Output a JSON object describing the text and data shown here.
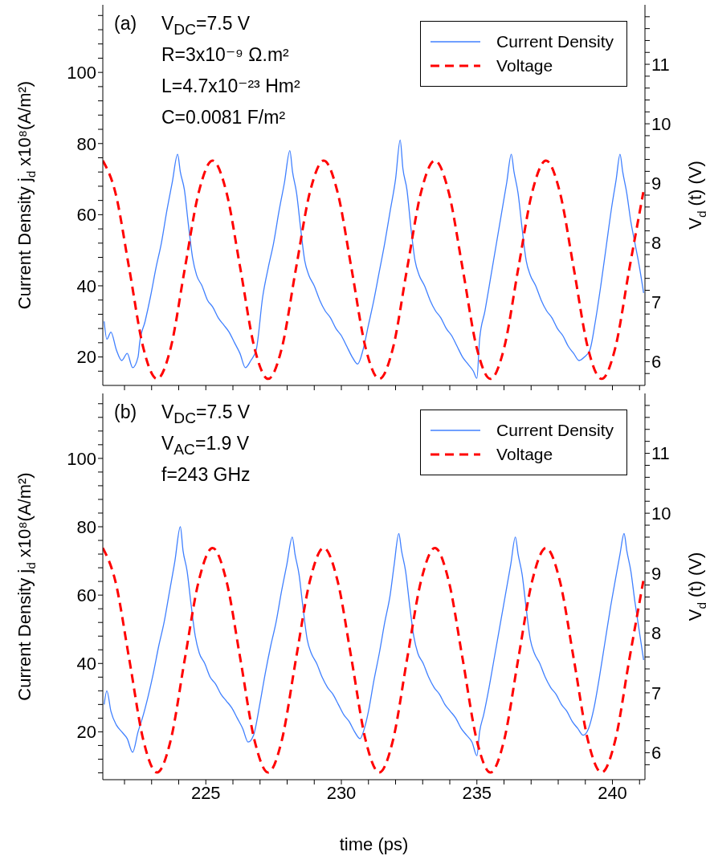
{
  "chart_data": [
    {
      "type": "line",
      "ylabel": "Current Density  j$_{d}$ x10⁸(A/m²)",
      "y2label": "V$_{d}$ (t) (V)",
      "legend": "top right",
      "tick_labels": "y",
      "annotations": [
        "(a)",
        "V$_{DC}$=7.5 V",
        "R=3x10⁻⁹ Ω.m²",
        "L=4.7x10⁻²³ Hm²",
        "C=0.0081 F/m²"
      ],
      "xlim": [
        221.2,
        241.2
      ],
      "ylim": [
        12,
        119
      ],
      "y2lim": [
        5.6,
        12
      ],
      "xticks": [
        {
          "value": 222,
          "label": null
        },
        {
          "value": 223,
          "label": null
        },
        {
          "value": 224,
          "label": null
        },
        225,
        {
          "value": 226,
          "label": null
        },
        {
          "value": 227,
          "label": null
        },
        {
          "value": 228,
          "label": null
        },
        {
          "value": 229,
          "label": null
        },
        230,
        {
          "value": 231,
          "label": null
        },
        {
          "value": 232,
          "label": null
        },
        {
          "value": 233,
          "label": null
        },
        {
          "value": 234,
          "label": null
        },
        235,
        {
          "value": 236,
          "label": null
        },
        {
          "value": 237,
          "label": null
        },
        {
          "value": 238,
          "label": null
        },
        {
          "value": 239,
          "label": null
        },
        240,
        {
          "value": 241,
          "label": null
        }
      ],
      "yticks": [
        {
          "value": 16,
          "label": null
        },
        20,
        {
          "value": 24,
          "label": null
        },
        {
          "value": 28,
          "label": null
        },
        {
          "value": 32,
          "label": null
        },
        {
          "value": 36,
          "label": null
        },
        40,
        {
          "value": 44,
          "label": null
        },
        {
          "value": 48,
          "label": null
        },
        {
          "value": 52,
          "label": null
        },
        {
          "value": 56,
          "label": null
        },
        60,
        {
          "value": 64,
          "label": null
        },
        {
          "value": 68,
          "label": null
        },
        {
          "value": 72,
          "label": null
        },
        {
          "value": 76,
          "label": null
        },
        80,
        {
          "value": 84,
          "label": null
        },
        {
          "value": 88,
          "label": null
        },
        {
          "value": 92,
          "label": null
        },
        {
          "value": 96,
          "label": null
        },
        100,
        {
          "value": 104,
          "label": null
        },
        {
          "value": 108,
          "label": null
        },
        {
          "value": 112,
          "label": null
        },
        {
          "value": 116,
          "label": null
        }
      ],
      "y2ticks": [
        {
          "value": 5.8,
          "label": null
        },
        6,
        {
          "value": 6.2,
          "label": null
        },
        {
          "value": 6.4,
          "label": null
        },
        {
          "value": 6.6,
          "label": null
        },
        {
          "value": 6.8,
          "label": null
        },
        7,
        {
          "value": 7.2,
          "label": null
        },
        {
          "value": 7.4,
          "label": null
        },
        {
          "value": 7.6,
          "label": null
        },
        {
          "value": 7.8,
          "label": null
        },
        8,
        {
          "value": 8.2,
          "label": null
        },
        {
          "value": 8.4,
          "label": null
        },
        {
          "value": 8.6,
          "label": null
        },
        {
          "value": 8.8,
          "label": null
        },
        9,
        {
          "value": 9.2,
          "label": null
        },
        {
          "value": 9.4,
          "label": null
        },
        {
          "value": 9.6,
          "label": null
        },
        {
          "value": 9.8,
          "label": null
        },
        10,
        {
          "value": 10.2,
          "label": null
        },
        {
          "value": 10.4,
          "label": null
        },
        {
          "value": 10.6,
          "label": null
        },
        {
          "value": 10.8,
          "label": null
        },
        11,
        {
          "value": 11.2,
          "label": null
        },
        {
          "value": 11.4,
          "label": null
        },
        {
          "value": 11.6,
          "label": null
        },
        {
          "value": 11.8,
          "label": null
        }
      ],
      "series": [
        {
          "name": "Current Density",
          "color": "#4080ff",
          "line_style": "solid",
          "x": [
            221.25,
            221.35,
            221.5,
            221.7,
            221.9,
            222.1,
            222.3,
            222.5,
            222.56,
            222.76,
            222.96,
            223.16,
            223.36,
            223.56,
            223.76,
            223.96,
            224.06,
            224.21,
            224.36,
            224.51,
            224.66,
            224.86,
            225.06,
            225.26,
            225.46,
            225.66,
            225.86,
            226.06,
            226.26,
            226.46,
            226.66,
            226.86,
            227.1,
            227.3,
            227.5,
            227.7,
            227.9,
            228.1,
            228.2,
            228.35,
            228.5,
            228.65,
            228.8,
            229.0,
            229.2,
            229.4,
            229.6,
            229.8,
            230.0,
            230.2,
            230.4,
            230.6,
            230.8,
            231.0,
            231.2,
            231.4,
            231.6,
            231.8,
            232.0,
            232.17,
            232.27,
            232.42,
            232.57,
            232.72,
            232.87,
            233.07,
            233.27,
            233.47,
            233.67,
            233.87,
            234.07,
            234.27,
            234.47,
            234.67,
            234.87,
            235.0,
            235.1,
            235.3,
            235.5,
            235.7,
            235.9,
            236.1,
            236.27,
            236.37,
            236.52,
            236.67,
            236.82,
            236.97,
            237.17,
            237.37,
            237.57,
            237.77,
            237.97,
            238.17,
            238.37,
            238.57,
            238.77,
            238.97,
            239.17,
            239.37,
            239.57,
            239.77,
            239.97,
            240.14,
            240.28,
            240.38,
            240.53,
            240.68,
            240.83,
            240.98,
            241.15
          ],
          "values": [
            30,
            25,
            27,
            22,
            19,
            21,
            17,
            20,
            24,
            30,
            37,
            45,
            52,
            61,
            69,
            77,
            72,
            67,
            57,
            48,
            43,
            40,
            36,
            34,
            31,
            29,
            27,
            24,
            21,
            17,
            19,
            22,
            37,
            45,
            52,
            61,
            69,
            78,
            72,
            66,
            56,
            47,
            43,
            40,
            36,
            33,
            31,
            28,
            26,
            23,
            20,
            18,
            22,
            29,
            36,
            44,
            52,
            61,
            70,
            81,
            73,
            67,
            56,
            47,
            43,
            40,
            36,
            33,
            31,
            28,
            26,
            23,
            20,
            18,
            16,
            14,
            25,
            33,
            42,
            51,
            60,
            69,
            77,
            72,
            66,
            56,
            47,
            43,
            40,
            36,
            33,
            31,
            28,
            26,
            23,
            21,
            19,
            20,
            22,
            30,
            40,
            51,
            62,
            70,
            77,
            72,
            66,
            58,
            52,
            46,
            38
          ]
        },
        {
          "name": "Voltage",
          "color": "#ff0000",
          "line_style": "dashed",
          "axis": "y2",
          "x": [
            221.2,
            221.66,
            222.18,
            222.69,
            223.2,
            223.71,
            224.22,
            224.74,
            225.25,
            225.76,
            226.28,
            226.79,
            227.3,
            227.81,
            228.32,
            228.84,
            229.35,
            229.86,
            230.38,
            230.89,
            231.4,
            231.91,
            232.42,
            232.94,
            233.45,
            233.96,
            234.48,
            234.99,
            235.5,
            236.01,
            236.52,
            237.04,
            237.55,
            238.06,
            238.58,
            239.09,
            239.6,
            240.11,
            240.62,
            241.14
          ],
          "values": [
            9.38,
            8.85,
            7.55,
            6.24,
            5.71,
            6.24,
            7.55,
            8.85,
            9.38,
            8.85,
            7.55,
            6.24,
            5.71,
            6.24,
            7.55,
            8.85,
            9.38,
            8.85,
            7.55,
            6.24,
            5.71,
            6.24,
            7.55,
            8.85,
            9.38,
            8.85,
            7.55,
            6.24,
            5.71,
            6.24,
            7.55,
            8.85,
            9.38,
            8.85,
            7.55,
            6.24,
            5.71,
            6.24,
            7.55,
            8.85
          ]
        }
      ]
    },
    {
      "type": "line",
      "xlabel": "time (ps)",
      "ylabel": "Current Density  j$_{d}$ x10⁸(A/m²)",
      "y2label": "V$_{d}$ (t) (V)",
      "legend": "top right",
      "annotations": [
        "(b)",
        "V$_{DC}$=7.5 V",
        "V$_{AC}$=1.9 V",
        "f=243 GHz"
      ],
      "xlim": [
        221.2,
        241.2
      ],
      "ylim": [
        6,
        119
      ],
      "y2lim": [
        5.55,
        12
      ],
      "xticks": [
        {
          "value": 222,
          "label": null
        },
        {
          "value": 223,
          "label": null
        },
        {
          "value": 224,
          "label": null
        },
        225,
        {
          "value": 226,
          "label": null
        },
        {
          "value": 227,
          "label": null
        },
        {
          "value": 228,
          "label": null
        },
        {
          "value": 229,
          "label": null
        },
        230,
        {
          "value": 231,
          "label": null
        },
        {
          "value": 232,
          "label": null
        },
        {
          "value": 233,
          "label": null
        },
        {
          "value": 234,
          "label": null
        },
        235,
        {
          "value": 236,
          "label": null
        },
        {
          "value": 237,
          "label": null
        },
        {
          "value": 238,
          "label": null
        },
        {
          "value": 239,
          "label": null
        },
        240,
        {
          "value": 241,
          "label": null
        }
      ],
      "yticks": [
        {
          "value": 8,
          "label": null
        },
        {
          "value": 12,
          "label": null
        },
        {
          "value": 16,
          "label": null
        },
        20,
        {
          "value": 24,
          "label": null
        },
        {
          "value": 28,
          "label": null
        },
        {
          "value": 32,
          "label": null
        },
        {
          "value": 36,
          "label": null
        },
        40,
        {
          "value": 44,
          "label": null
        },
        {
          "value": 48,
          "label": null
        },
        {
          "value": 52,
          "label": null
        },
        {
          "value": 56,
          "label": null
        },
        60,
        {
          "value": 64,
          "label": null
        },
        {
          "value": 68,
          "label": null
        },
        {
          "value": 72,
          "label": null
        },
        {
          "value": 76,
          "label": null
        },
        80,
        {
          "value": 84,
          "label": null
        },
        {
          "value": 88,
          "label": null
        },
        {
          "value": 92,
          "label": null
        },
        {
          "value": 96,
          "label": null
        },
        100,
        {
          "value": 104,
          "label": null
        },
        {
          "value": 108,
          "label": null
        },
        {
          "value": 112,
          "label": null
        },
        {
          "value": 116,
          "label": null
        }
      ],
      "y2ticks": [
        {
          "value": 5.8,
          "label": null
        },
        6,
        {
          "value": 6.2,
          "label": null
        },
        {
          "value": 6.4,
          "label": null
        },
        {
          "value": 6.6,
          "label": null
        },
        {
          "value": 6.8,
          "label": null
        },
        7,
        {
          "value": 7.2,
          "label": null
        },
        {
          "value": 7.4,
          "label": null
        },
        {
          "value": 7.6,
          "label": null
        },
        {
          "value": 7.8,
          "label": null
        },
        8,
        {
          "value": 8.2,
          "label": null
        },
        {
          "value": 8.4,
          "label": null
        },
        {
          "value": 8.6,
          "label": null
        },
        {
          "value": 8.8,
          "label": null
        },
        9,
        {
          "value": 9.2,
          "label": null
        },
        {
          "value": 9.4,
          "label": null
        },
        {
          "value": 9.6,
          "label": null
        },
        {
          "value": 9.8,
          "label": null
        },
        10,
        {
          "value": 10.2,
          "label": null
        },
        {
          "value": 10.4,
          "label": null
        },
        {
          "value": 10.6,
          "label": null
        },
        {
          "value": 10.8,
          "label": null
        },
        11,
        {
          "value": 11.2,
          "label": null
        },
        {
          "value": 11.4,
          "label": null
        },
        {
          "value": 11.6,
          "label": null
        },
        {
          "value": 11.8,
          "label": null
        }
      ],
      "series": [
        {
          "name": "Current Density",
          "color": "#4080ff",
          "line_style": "solid",
          "x": [
            221.25,
            221.35,
            221.5,
            221.7,
            221.9,
            222.1,
            222.3,
            222.5,
            222.66,
            222.86,
            223.06,
            223.26,
            223.46,
            223.66,
            223.86,
            224.06,
            224.16,
            224.31,
            224.46,
            224.61,
            224.76,
            224.96,
            225.16,
            225.36,
            225.56,
            225.76,
            225.96,
            226.16,
            226.36,
            226.56,
            226.76,
            226.99,
            227.19,
            227.39,
            227.59,
            227.79,
            227.99,
            228.19,
            228.29,
            228.44,
            228.59,
            228.74,
            228.89,
            229.09,
            229.29,
            229.49,
            229.69,
            229.89,
            230.09,
            230.29,
            230.49,
            230.69,
            230.85,
            231.0,
            231.2,
            231.4,
            231.6,
            231.8,
            231.95,
            232.12,
            232.22,
            232.37,
            232.52,
            232.67,
            232.82,
            233.02,
            233.22,
            233.42,
            233.62,
            233.82,
            234.02,
            234.22,
            234.42,
            234.62,
            234.82,
            235.0,
            235.1,
            235.25,
            235.45,
            235.65,
            235.85,
            236.05,
            236.25,
            236.42,
            236.52,
            236.67,
            236.82,
            236.97,
            237.12,
            237.32,
            237.52,
            237.72,
            237.92,
            238.12,
            238.32,
            238.52,
            238.72,
            238.92,
            239.12,
            239.32,
            239.52,
            239.72,
            239.92,
            240.12,
            240.28,
            240.43,
            240.53,
            240.68,
            240.83,
            240.98,
            241.15
          ],
          "values": [
            28,
            32,
            26,
            22,
            20,
            18,
            14,
            20,
            24,
            30,
            37,
            45,
            52,
            61,
            70,
            80,
            73,
            67,
            57,
            48,
            43,
            40,
            36,
            34,
            31,
            29,
            27,
            24,
            21,
            17,
            19,
            28,
            37,
            45,
            52,
            61,
            69,
            77,
            72,
            66,
            56,
            47,
            43,
            40,
            36,
            33,
            31,
            28,
            25,
            23,
            20,
            18,
            21,
            26,
            35,
            43,
            52,
            60,
            69,
            78,
            73,
            67,
            57,
            48,
            43,
            40,
            36,
            33,
            31,
            28,
            26,
            24,
            21,
            19,
            17,
            13,
            20,
            25,
            33,
            42,
            51,
            60,
            69,
            77,
            72,
            66,
            56,
            47,
            43,
            40,
            36,
            33,
            31,
            28,
            26,
            23,
            21,
            19,
            21,
            27,
            36,
            46,
            56,
            65,
            72,
            78,
            73,
            67,
            58,
            50,
            41
          ]
        },
        {
          "name": "Voltage",
          "color": "#ff0000",
          "line_style": "dashed",
          "axis": "y2",
          "x": [
            221.2,
            221.66,
            222.18,
            222.69,
            223.2,
            223.71,
            224.22,
            224.74,
            225.25,
            225.76,
            226.28,
            226.79,
            227.3,
            227.81,
            228.32,
            228.84,
            229.35,
            229.86,
            230.38,
            230.89,
            231.4,
            231.91,
            232.42,
            232.94,
            233.45,
            233.96,
            234.48,
            234.99,
            235.5,
            236.01,
            236.52,
            237.04,
            237.55,
            238.06,
            238.58,
            239.09,
            239.6,
            240.11,
            240.62,
            241.14
          ],
          "values": [
            9.42,
            8.87,
            7.55,
            6.22,
            5.67,
            6.22,
            7.55,
            8.87,
            9.42,
            8.87,
            7.55,
            6.22,
            5.67,
            6.22,
            7.55,
            8.87,
            9.42,
            8.87,
            7.55,
            6.22,
            5.67,
            6.22,
            7.55,
            8.87,
            9.42,
            8.87,
            7.55,
            6.22,
            5.67,
            6.22,
            7.55,
            8.87,
            9.42,
            8.87,
            7.55,
            6.22,
            5.67,
            6.22,
            7.55,
            8.87
          ]
        }
      ]
    }
  ]
}
